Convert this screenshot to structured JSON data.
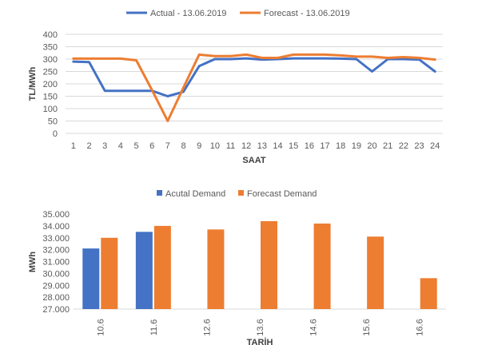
{
  "chart_data": [
    {
      "type": "line",
      "title": "",
      "xlabel": "SAAT",
      "ylabel": "TL/MWh",
      "categories": [
        "1",
        "2",
        "3",
        "4",
        "5",
        "6",
        "7",
        "8",
        "9",
        "10",
        "11",
        "12",
        "13",
        "14",
        "15",
        "16",
        "17",
        "18",
        "19",
        "20",
        "21",
        "22",
        "23",
        "24"
      ],
      "ylim": [
        0,
        400
      ],
      "yticks": [
        "0",
        "50",
        "100",
        "150",
        "200",
        "250",
        "300",
        "350",
        "400"
      ],
      "grid": true,
      "legend_position": "top",
      "series": [
        {
          "name": "Actual - 13.06.2019",
          "color": "#4472C4",
          "values": [
            290,
            288,
            172,
            172,
            172,
            172,
            150,
            168,
            272,
            300,
            300,
            303,
            298,
            300,
            303,
            303,
            303,
            302,
            300,
            250,
            300,
            300,
            298,
            250
          ]
        },
        {
          "name": "Forecast - 13.06.2019",
          "color": "#ED7D31",
          "values": [
            302,
            302,
            302,
            302,
            295,
            175,
            50,
            185,
            318,
            312,
            312,
            318,
            305,
            305,
            318,
            318,
            318,
            315,
            310,
            310,
            305,
            308,
            305,
            298
          ]
        }
      ]
    },
    {
      "type": "bar",
      "title": "",
      "xlabel": "TARİH",
      "ylabel": "MWh",
      "categories": [
        "10.6",
        "11.6",
        "12.6",
        "13.6",
        "14.6",
        "15.6",
        "16.6"
      ],
      "ylim": [
        27000,
        35000
      ],
      "yticks": [
        "27.000",
        "28.000",
        "29.000",
        "30.000",
        "31.000",
        "32.000",
        "33.000",
        "34.000",
        "35.000"
      ],
      "grid": false,
      "legend_position": "top",
      "series": [
        {
          "name": "Acutal Demand",
          "color": "#4472C4",
          "values": [
            32100,
            33500,
            null,
            null,
            null,
            null,
            null
          ]
        },
        {
          "name": "Forecast Demand",
          "color": "#ED7D31",
          "values": [
            33000,
            34000,
            33700,
            34400,
            34200,
            33100,
            29600
          ]
        }
      ]
    }
  ]
}
